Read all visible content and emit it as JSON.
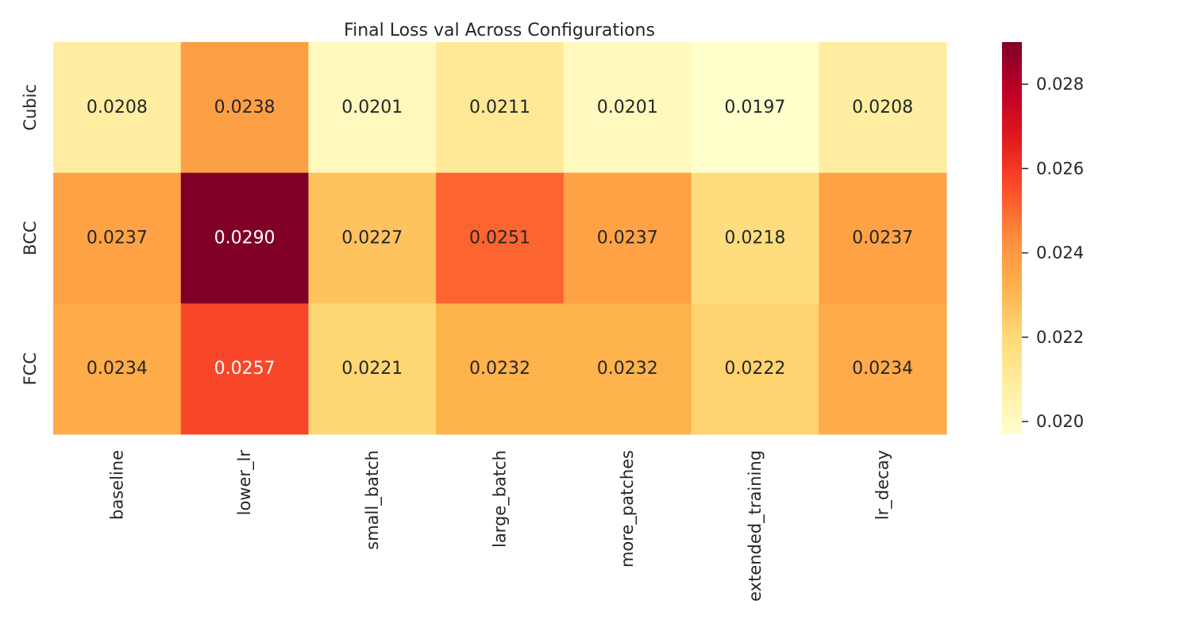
{
  "chart_data": {
    "type": "heatmap",
    "title": "Final Loss val Across Configurations",
    "xlabel": "",
    "ylabel": "",
    "x_categories": [
      "baseline",
      "lower_lr",
      "small_batch",
      "large_batch",
      "more_patches",
      "extended_training",
      "lr_decay"
    ],
    "y_categories": [
      "Cubic",
      "BCC",
      "FCC"
    ],
    "values": [
      [
        0.0208,
        0.0238,
        0.0201,
        0.0211,
        0.0201,
        0.0197,
        0.0208
      ],
      [
        0.0237,
        0.029,
        0.0227,
        0.0251,
        0.0237,
        0.0218,
        0.0237
      ],
      [
        0.0234,
        0.0257,
        0.0221,
        0.0232,
        0.0232,
        0.0222,
        0.0234
      ]
    ],
    "value_labels": [
      [
        "0.0208",
        "0.0238",
        "0.0201",
        "0.0211",
        "0.0201",
        "0.0197",
        "0.0208"
      ],
      [
        "0.0237",
        "0.0290",
        "0.0227",
        "0.0251",
        "0.0237",
        "0.0218",
        "0.0237"
      ],
      [
        "0.0234",
        "0.0257",
        "0.0221",
        "0.0232",
        "0.0232",
        "0.0222",
        "0.0234"
      ]
    ],
    "colormap": "YlOrRd",
    "color_range": [
      0.0197,
      0.029
    ],
    "colorbar": {
      "ticks": [
        0.02,
        0.022,
        0.024,
        0.026,
        0.028
      ],
      "tick_labels": [
        "0.020",
        "0.022",
        "0.024",
        "0.026",
        "0.028"
      ],
      "placement": "right"
    },
    "grid": false
  }
}
